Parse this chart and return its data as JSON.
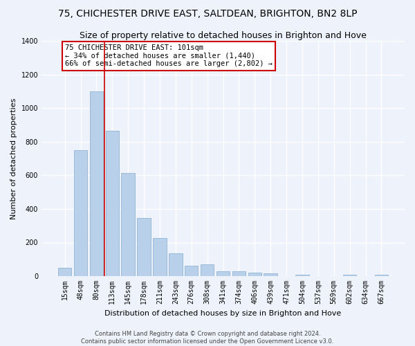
{
  "title": "75, CHICHESTER DRIVE EAST, SALTDEAN, BRIGHTON, BN2 8LP",
  "subtitle": "Size of property relative to detached houses in Brighton and Hove",
  "xlabel": "Distribution of detached houses by size in Brighton and Hove",
  "ylabel": "Number of detached properties",
  "footer1": "Contains HM Land Registry data © Crown copyright and database right 2024.",
  "footer2": "Contains public sector information licensed under the Open Government Licence v3.0.",
  "categories": [
    "15sqm",
    "48sqm",
    "80sqm",
    "113sqm",
    "145sqm",
    "178sqm",
    "211sqm",
    "243sqm",
    "276sqm",
    "308sqm",
    "341sqm",
    "374sqm",
    "406sqm",
    "439sqm",
    "471sqm",
    "504sqm",
    "537sqm",
    "569sqm",
    "602sqm",
    "634sqm",
    "667sqm"
  ],
  "values": [
    50,
    750,
    1100,
    865,
    615,
    345,
    225,
    135,
    60,
    70,
    30,
    30,
    20,
    15,
    0,
    10,
    0,
    0,
    10,
    0,
    10
  ],
  "bar_color": "#b8d0ea",
  "bar_edge_color": "#92b4d4",
  "red_line_x": 2.5,
  "annotation_text": "75 CHICHESTER DRIVE EAST: 101sqm\n← 34% of detached houses are smaller (1,440)\n66% of semi-detached houses are larger (2,802) →",
  "annotation_box_color": "#ffffff",
  "annotation_border_color": "#cc0000",
  "ylim": [
    0,
    1400
  ],
  "yticks": [
    0,
    200,
    400,
    600,
    800,
    1000,
    1200,
    1400
  ],
  "background_color": "#eef2fa",
  "grid_color": "#ffffff",
  "title_fontsize": 10,
  "subtitle_fontsize": 9,
  "xlabel_fontsize": 8,
  "ylabel_fontsize": 8,
  "tick_fontsize": 7,
  "footer_fontsize": 6
}
